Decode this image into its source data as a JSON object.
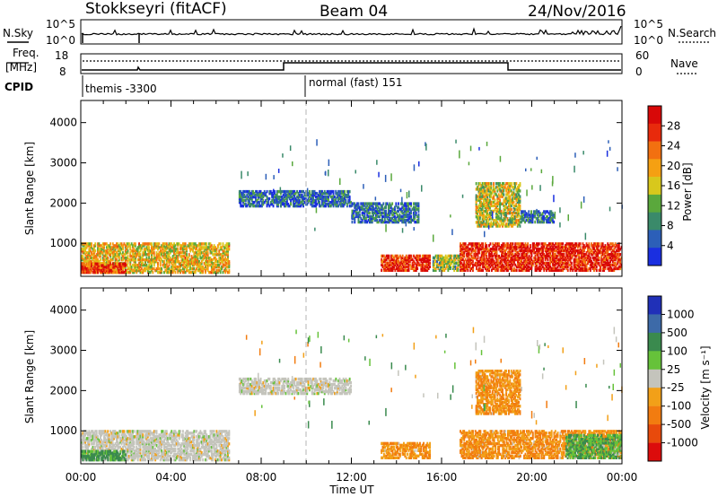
{
  "header": {
    "station": "Stokkseyri (fitACF)",
    "beam": "Beam 04",
    "date": "24/Nov/2016"
  },
  "noise_panel": {
    "left_label": "N.Sky",
    "left_ticks": [
      "10^5",
      "10^0"
    ],
    "right_label": "N.Search",
    "right_ticks": [
      "10^5",
      "10^0"
    ]
  },
  "freq_panel": {
    "left_label_1": "Freq.",
    "left_label_2": "[MHz]",
    "left_ticks": [
      "18",
      "8"
    ],
    "right_label": "Nave",
    "right_ticks": [
      "60",
      "0"
    ]
  },
  "cpid_panel": {
    "label": "CPID",
    "modes": [
      {
        "name": "themis -3300",
        "start_h": 0.0
      },
      {
        "name": "normal (fast) 151",
        "start_h": 9.9
      }
    ]
  },
  "x_axis": {
    "title": "Time UT",
    "ticks": [
      "00:00",
      "04:00",
      "08:00",
      "12:00",
      "16:00",
      "20:00",
      "00:00"
    ]
  },
  "power_panel": {
    "ylabel": "Slant Range [km]",
    "yticks": [
      "1000",
      "2000",
      "3000",
      "4000"
    ],
    "colorbar_label": "Power [dB]",
    "colorbar_ticks": [
      "4",
      "8",
      "12",
      "16",
      "20",
      "24",
      "28"
    ]
  },
  "velocity_panel": {
    "ylabel": "Slant Range [km]",
    "yticks": [
      "1000",
      "2000",
      "3000",
      "4000"
    ],
    "colorbar_label": "Velocity [m s⁻¹]",
    "colorbar_ticks": [
      "1000",
      "500",
      "100",
      "25",
      "-25",
      "-100",
      "-500",
      "-1000"
    ]
  },
  "chart_data": [
    {
      "type": "heatmap",
      "title": "Power",
      "xlabel": "Time UT",
      "ylabel": "Slant Range [km]",
      "xlim": [
        0,
        24
      ],
      "ylim": [
        180,
        4550
      ],
      "colorbar": {
        "label": "Power [dB]",
        "range": [
          0,
          32
        ],
        "ticks": [
          4,
          8,
          12,
          16,
          20,
          24,
          28
        ],
        "colors": [
          "#1a2fe0",
          "#2c5fb8",
          "#3a8a6a",
          "#5aa83c",
          "#d8c81c",
          "#f5a012",
          "#f27010",
          "#e82a0c",
          "#d80808"
        ]
      },
      "regions": [
        {
          "t0": 0.0,
          "t1": 6.6,
          "r0": 250,
          "r1": 1000,
          "value": 18
        },
        {
          "t0": 0.0,
          "t1": 2.0,
          "r0": 250,
          "r1": 500,
          "value": 26
        },
        {
          "t0": 7.0,
          "t1": 12.0,
          "r0": 1900,
          "r1": 2300,
          "value": 6
        },
        {
          "t0": 12.0,
          "t1": 15.0,
          "r0": 1500,
          "r1": 2000,
          "value": 6
        },
        {
          "t0": 13.3,
          "t1": 15.5,
          "r0": 300,
          "r1": 700,
          "value": 28
        },
        {
          "t0": 15.6,
          "t1": 16.8,
          "r0": 300,
          "r1": 700,
          "value": 14
        },
        {
          "t0": 16.8,
          "t1": 24.0,
          "r0": 300,
          "r1": 1000,
          "value": 28
        },
        {
          "t0": 17.5,
          "t1": 19.5,
          "r0": 1400,
          "r1": 2500,
          "value": 16
        },
        {
          "t0": 19.5,
          "t1": 21.0,
          "r0": 1500,
          "r1": 1800,
          "value": 7
        }
      ]
    },
    {
      "type": "heatmap",
      "title": "Velocity",
      "xlabel": "Time UT",
      "ylabel": "Slant Range [km]",
      "xlim": [
        0,
        24
      ],
      "ylim": [
        180,
        4550
      ],
      "colorbar": {
        "label": "Velocity [m s⁻¹]",
        "ticks": [
          1000,
          500,
          100,
          25,
          -25,
          -100,
          -500,
          -1000
        ],
        "colors": [
          "#2030b8",
          "#3d6aa8",
          "#3a8a4e",
          "#66c23a",
          "#c4c4bc",
          "#f2a018",
          "#f27c10",
          "#e84a0c",
          "#dc0c0c"
        ]
      },
      "regions": [
        {
          "t0": 0.0,
          "t1": 6.6,
          "r0": 250,
          "r1": 1000,
          "value": 0
        },
        {
          "t0": 0.0,
          "t1": 2.0,
          "r0": 250,
          "r1": 500,
          "value": 150
        },
        {
          "t0": 7.0,
          "t1": 12.0,
          "r0": 1900,
          "r1": 2300,
          "value": 0
        },
        {
          "t0": 13.3,
          "t1": 15.5,
          "r0": 300,
          "r1": 700,
          "value": -100
        },
        {
          "t0": 16.8,
          "t1": 24.0,
          "r0": 300,
          "r1": 1000,
          "value": -100
        },
        {
          "t0": 17.5,
          "t1": 19.5,
          "r0": 1400,
          "r1": 2500,
          "value": -100
        },
        {
          "t0": 21.5,
          "t1": 24.0,
          "r0": 300,
          "r1": 900,
          "value": 100
        }
      ]
    }
  ],
  "colors": {
    "axis": "#000000",
    "dashed_marker": "#b4b4b4"
  }
}
